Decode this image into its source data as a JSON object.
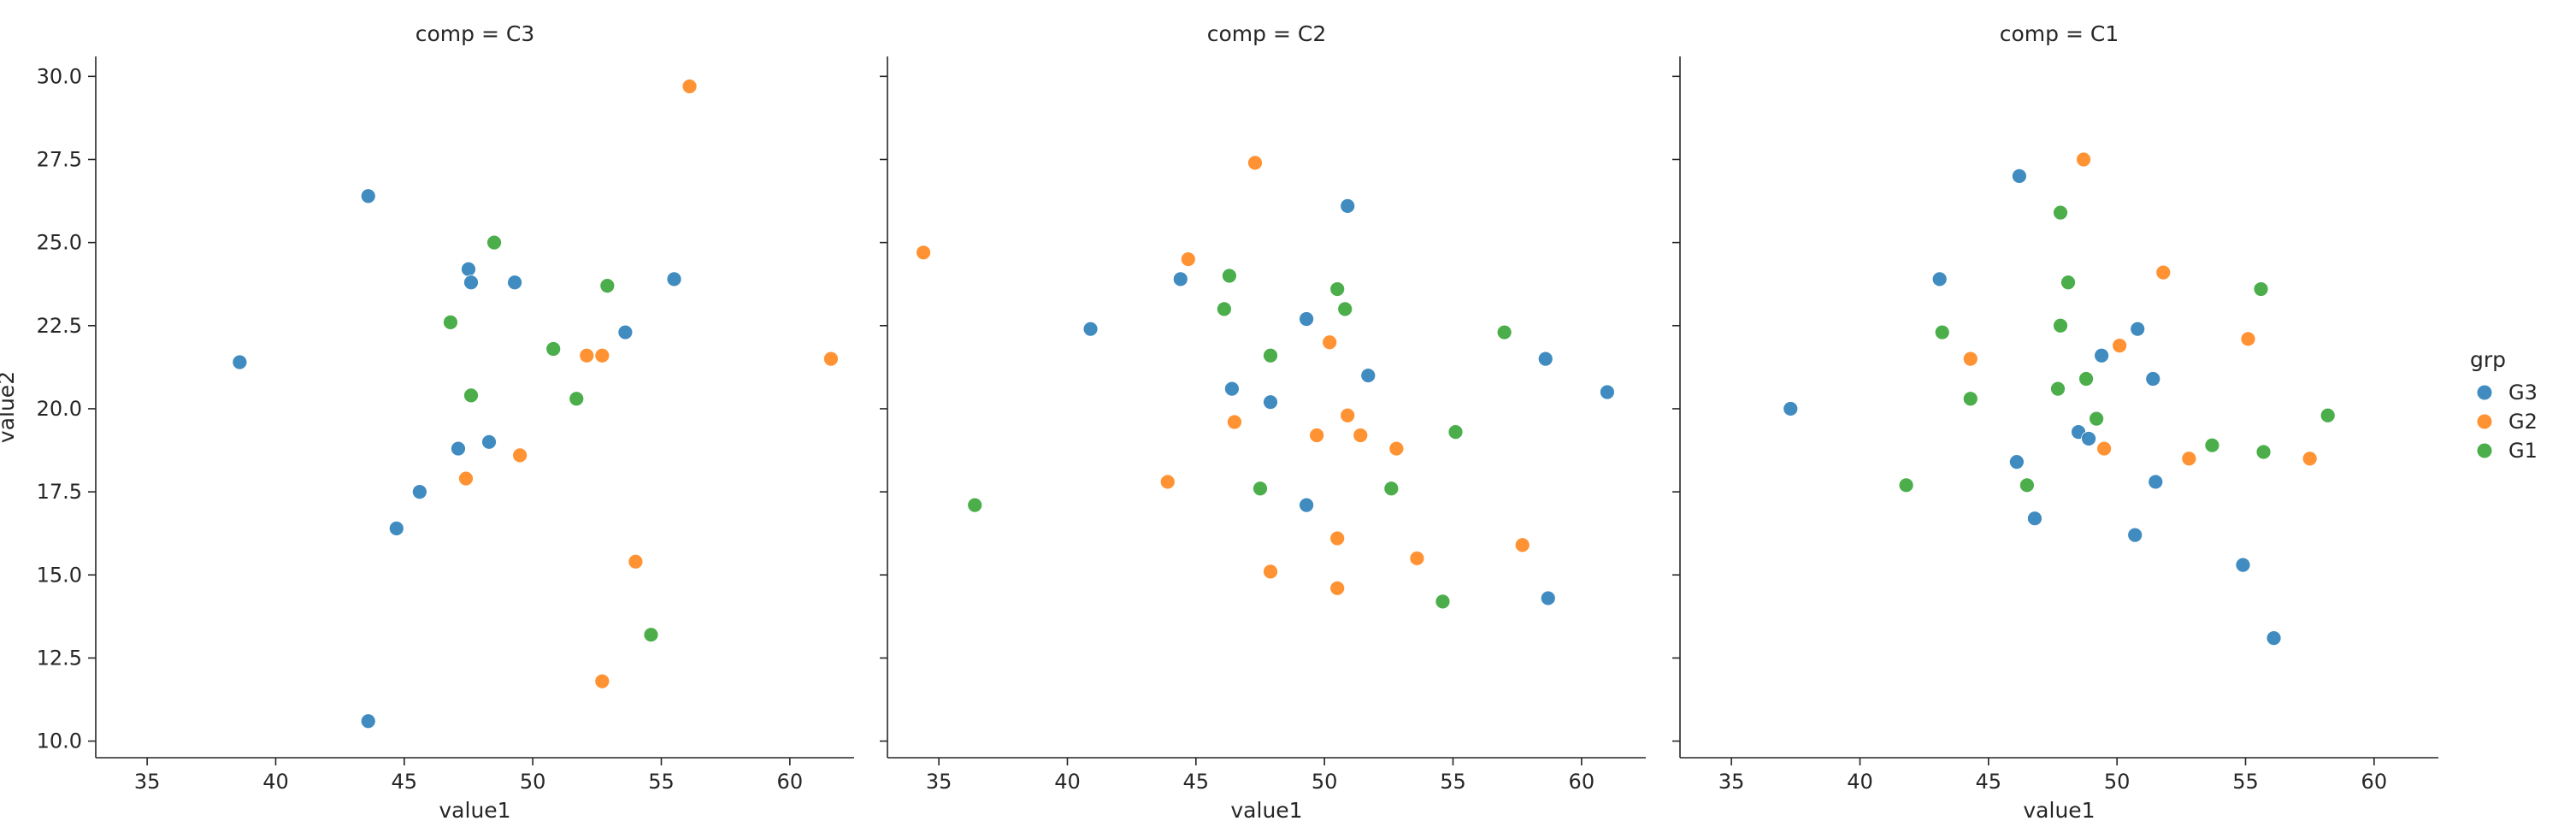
{
  "chart_data": [
    {
      "type": "scatter",
      "title": "comp = C3",
      "xlabel": "value1",
      "ylabel": "value2",
      "xlim": [
        33,
        62.5
      ],
      "ylim": [
        9.5,
        30.6
      ],
      "xticks": [
        "35",
        "40",
        "45",
        "50",
        "55",
        "60"
      ],
      "yticks": [
        "10.0",
        "12.5",
        "15.0",
        "17.5",
        "20.0",
        "22.5",
        "25.0",
        "27.5",
        "30.0"
      ],
      "grid": false,
      "series": [
        {
          "name": "G3",
          "points": [
            [
              38.6,
              21.4
            ],
            [
              43.6,
              26.4
            ],
            [
              43.6,
              10.6
            ],
            [
              44.7,
              16.4
            ],
            [
              45.6,
              17.5
            ],
            [
              47.1,
              18.8
            ],
            [
              47.5,
              24.2
            ],
            [
              47.6,
              23.8
            ],
            [
              48.3,
              19.0
            ],
            [
              49.3,
              23.8
            ],
            [
              53.6,
              22.3
            ],
            [
              55.5,
              23.9
            ]
          ]
        },
        {
          "name": "G2",
          "points": [
            [
              47.4,
              17.9
            ],
            [
              49.5,
              18.6
            ],
            [
              52.1,
              21.6
            ],
            [
              52.7,
              21.6
            ],
            [
              52.7,
              11.8
            ],
            [
              54.0,
              15.4
            ],
            [
              56.1,
              29.7
            ],
            [
              61.6,
              21.5
            ]
          ]
        },
        {
          "name": "G1",
          "points": [
            [
              46.8,
              22.6
            ],
            [
              47.6,
              20.4
            ],
            [
              48.5,
              25.0
            ],
            [
              50.8,
              21.8
            ],
            [
              51.7,
              20.3
            ],
            [
              52.9,
              23.7
            ],
            [
              54.6,
              13.2
            ]
          ]
        }
      ]
    },
    {
      "type": "scatter",
      "title": "comp = C2",
      "xlabel": "value1",
      "ylabel": "",
      "xlim": [
        33,
        62.5
      ],
      "ylim": [
        9.5,
        30.6
      ],
      "xticks": [
        "35",
        "40",
        "45",
        "50",
        "55",
        "60"
      ],
      "yticks": [],
      "grid": false,
      "series": [
        {
          "name": "G3",
          "points": [
            [
              40.9,
              22.4
            ],
            [
              44.4,
              23.9
            ],
            [
              46.4,
              20.6
            ],
            [
              47.9,
              20.2
            ],
            [
              49.3,
              22.7
            ],
            [
              49.3,
              17.1
            ],
            [
              50.9,
              26.1
            ],
            [
              51.7,
              21.0
            ],
            [
              58.6,
              21.5
            ],
            [
              58.7,
              14.3
            ],
            [
              61.0,
              20.5
            ]
          ]
        },
        {
          "name": "G2",
          "points": [
            [
              34.4,
              24.7
            ],
            [
              43.9,
              17.8
            ],
            [
              44.7,
              24.5
            ],
            [
              46.5,
              19.6
            ],
            [
              47.3,
              27.4
            ],
            [
              47.9,
              15.1
            ],
            [
              49.7,
              19.2
            ],
            [
              50.2,
              22.0
            ],
            [
              50.5,
              16.1
            ],
            [
              50.5,
              14.6
            ],
            [
              50.9,
              19.8
            ],
            [
              51.4,
              19.2
            ],
            [
              52.8,
              18.8
            ],
            [
              53.6,
              15.5
            ],
            [
              57.7,
              15.9
            ]
          ]
        },
        {
          "name": "G1",
          "points": [
            [
              36.4,
              17.1
            ],
            [
              46.1,
              23.0
            ],
            [
              46.3,
              24.0
            ],
            [
              47.5,
              17.6
            ],
            [
              47.9,
              21.6
            ],
            [
              50.5,
              23.6
            ],
            [
              50.8,
              23.0
            ],
            [
              52.6,
              17.6
            ],
            [
              54.6,
              14.2
            ],
            [
              55.1,
              19.3
            ],
            [
              57.0,
              22.3
            ]
          ]
        }
      ]
    },
    {
      "type": "scatter",
      "title": "comp = C1",
      "xlabel": "value1",
      "ylabel": "",
      "xlim": [
        33,
        62.5
      ],
      "ylim": [
        9.5,
        30.6
      ],
      "xticks": [
        "35",
        "40",
        "45",
        "50",
        "55",
        "60"
      ],
      "yticks": [],
      "grid": false,
      "series": [
        {
          "name": "G3",
          "points": [
            [
              37.3,
              20.0
            ],
            [
              43.1,
              23.9
            ],
            [
              46.1,
              18.4
            ],
            [
              46.2,
              27.0
            ],
            [
              46.8,
              16.7
            ],
            [
              48.5,
              19.3
            ],
            [
              48.9,
              19.1
            ],
            [
              49.4,
              21.6
            ],
            [
              50.7,
              16.2
            ],
            [
              50.8,
              22.4
            ],
            [
              51.4,
              20.9
            ],
            [
              51.5,
              17.8
            ],
            [
              54.9,
              15.3
            ],
            [
              56.1,
              13.1
            ]
          ]
        },
        {
          "name": "G2",
          "points": [
            [
              44.3,
              21.5
            ],
            [
              48.7,
              27.5
            ],
            [
              49.5,
              18.8
            ],
            [
              50.1,
              21.9
            ],
            [
              51.8,
              24.1
            ],
            [
              52.8,
              18.5
            ],
            [
              55.1,
              22.1
            ],
            [
              57.5,
              18.5
            ]
          ]
        },
        {
          "name": "G1",
          "points": [
            [
              41.8,
              17.7
            ],
            [
              43.2,
              22.3
            ],
            [
              44.3,
              20.3
            ],
            [
              46.5,
              17.7
            ],
            [
              47.7,
              20.6
            ],
            [
              47.8,
              22.5
            ],
            [
              47.8,
              25.9
            ],
            [
              48.1,
              23.8
            ],
            [
              48.8,
              20.9
            ],
            [
              49.2,
              19.7
            ],
            [
              53.7,
              18.9
            ],
            [
              55.6,
              23.6
            ],
            [
              55.7,
              18.7
            ],
            [
              58.2,
              19.8
            ]
          ]
        }
      ]
    }
  ],
  "legend": {
    "title": "grp",
    "placement": "right",
    "items": [
      {
        "name": "G3",
        "color": "#1f77b4"
      },
      {
        "name": "G2",
        "color": "#ff7f0e"
      },
      {
        "name": "G1",
        "color": "#2ca02c"
      }
    ]
  },
  "colors": {
    "G3": "#1f77b4",
    "G2": "#ff7f0e",
    "G1": "#2ca02c"
  }
}
